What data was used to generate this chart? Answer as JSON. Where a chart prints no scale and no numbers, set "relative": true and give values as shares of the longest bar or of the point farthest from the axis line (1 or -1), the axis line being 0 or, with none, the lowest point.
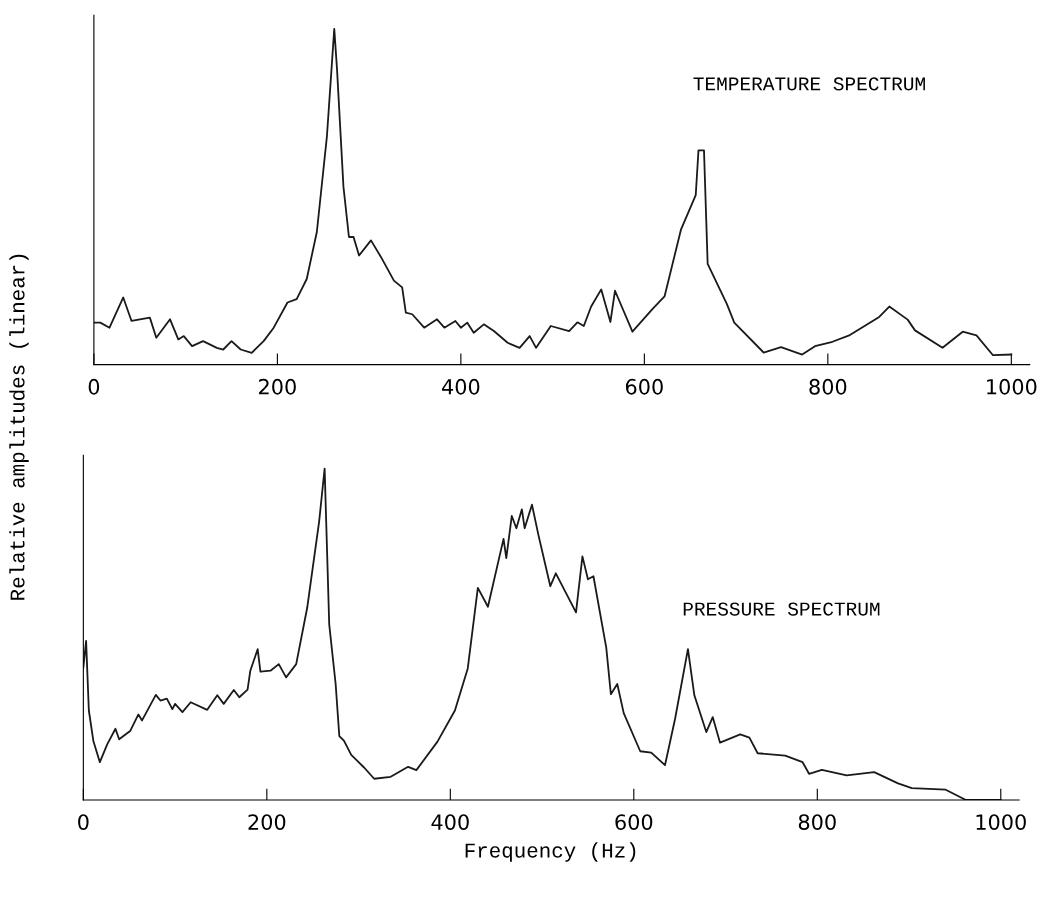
{
  "chart_data": [
    {
      "type": "line",
      "title": "TEMPERATURE SPECTRUM",
      "ylabel": "Relative amplitudes (linear)",
      "relative": true,
      "xlim": [
        0,
        1020
      ],
      "xticks": [
        0,
        200,
        400,
        600,
        800,
        1000
      ],
      "grid": false,
      "marker": "none",
      "line_style": "solid",
      "x": [
        0,
        7,
        17,
        32,
        41,
        61,
        68,
        83,
        92,
        98,
        107,
        119,
        134,
        141,
        150,
        160,
        172,
        185,
        196,
        211,
        221,
        232,
        243,
        254,
        262,
        265,
        272,
        278,
        283,
        289,
        302,
        313,
        327,
        336,
        340,
        347,
        360,
        374,
        382,
        394,
        400,
        407,
        414,
        425,
        436,
        451,
        464,
        475,
        482,
        498,
        518,
        527,
        534,
        542,
        553,
        563,
        568,
        587,
        609,
        622,
        640,
        656,
        659,
        665,
        669,
        690,
        698,
        730,
        749,
        772,
        786,
        805,
        824,
        856,
        867,
        887,
        895,
        925,
        947,
        962,
        980,
        1000
      ],
      "series": [
        {
          "color": "#1a1a1a",
          "values": [
            0.125,
            0.125,
            0.11,
            0.2,
            0.13,
            0.14,
            0.08,
            0.135,
            0.075,
            0.085,
            0.055,
            0.07,
            0.05,
            0.045,
            0.07,
            0.045,
            0.035,
            0.07,
            0.11,
            0.185,
            0.195,
            0.255,
            0.395,
            0.68,
            1.0,
            0.88,
            0.53,
            0.38,
            0.38,
            0.325,
            0.37,
            0.32,
            0.25,
            0.23,
            0.155,
            0.15,
            0.11,
            0.135,
            0.11,
            0.13,
            0.11,
            0.125,
            0.095,
            0.12,
            0.1,
            0.065,
            0.05,
            0.085,
            0.05,
            0.115,
            0.1,
            0.126,
            0.115,
            0.173,
            0.224,
            0.127,
            0.22,
            0.098,
            0.166,
            0.203,
            0.403,
            0.505,
            0.638,
            0.638,
            0.3,
            0.18,
            0.125,
            0.036,
            0.052,
            0.03,
            0.055,
            0.068,
            0.088,
            0.142,
            0.173,
            0.134,
            0.102,
            0.05,
            0.098,
            0.087,
            0.028,
            0.03
          ]
        }
      ]
    },
    {
      "type": "line",
      "title": "PRESSURE SPECTRUM",
      "xlabel": "Frequency (Hz)",
      "relative": true,
      "xlim": [
        0,
        1020
      ],
      "xticks": [
        0,
        200,
        400,
        600,
        800,
        1000
      ],
      "grid": false,
      "marker": "none",
      "line_style": "solid",
      "x": [
        0,
        3,
        6,
        11,
        18,
        26,
        35,
        39,
        51,
        60,
        64,
        79,
        84,
        91,
        97,
        100,
        108,
        117,
        135,
        146,
        153,
        164,
        170,
        179,
        182,
        190,
        193,
        204,
        213,
        221,
        232,
        244,
        257,
        263,
        268,
        275,
        279,
        284,
        292,
        306,
        317,
        335,
        354,
        363,
        386,
        405,
        419,
        430,
        441,
        458,
        461,
        467,
        472,
        478,
        481,
        489,
        496,
        509,
        515,
        537,
        544,
        550,
        556,
        570,
        575,
        582,
        589,
        607,
        619,
        634,
        645,
        659,
        666,
        679,
        686,
        694,
        716,
        726,
        735,
        765,
        784,
        791,
        805,
        832,
        862,
        888,
        903,
        940,
        962,
        1000
      ],
      "series": [
        {
          "color": "#1a1a1a",
          "values": [
            0.4,
            0.48,
            0.27,
            0.177,
            0.114,
            0.168,
            0.215,
            0.183,
            0.208,
            0.258,
            0.24,
            0.317,
            0.3,
            0.306,
            0.274,
            0.29,
            0.265,
            0.295,
            0.272,
            0.316,
            0.29,
            0.332,
            0.31,
            0.333,
            0.39,
            0.455,
            0.387,
            0.39,
            0.41,
            0.37,
            0.41,
            0.58,
            0.84,
            1.0,
            0.53,
            0.35,
            0.193,
            0.179,
            0.136,
            0.098,
            0.064,
            0.07,
            0.1,
            0.09,
            0.176,
            0.27,
            0.397,
            0.64,
            0.583,
            0.788,
            0.73,
            0.857,
            0.82,
            0.877,
            0.82,
            0.891,
            0.8,
            0.645,
            0.684,
            0.566,
            0.735,
            0.666,
            0.675,
            0.459,
            0.319,
            0.35,
            0.262,
            0.147,
            0.143,
            0.105,
            0.245,
            0.455,
            0.316,
            0.205,
            0.25,
            0.173,
            0.198,
            0.188,
            0.141,
            0.134,
            0.114,
            0.079,
            0.091,
            0.074,
            0.084,
            0.05,
            0.036,
            0.031,
            0.0,
            0.0
          ]
        }
      ]
    }
  ]
}
